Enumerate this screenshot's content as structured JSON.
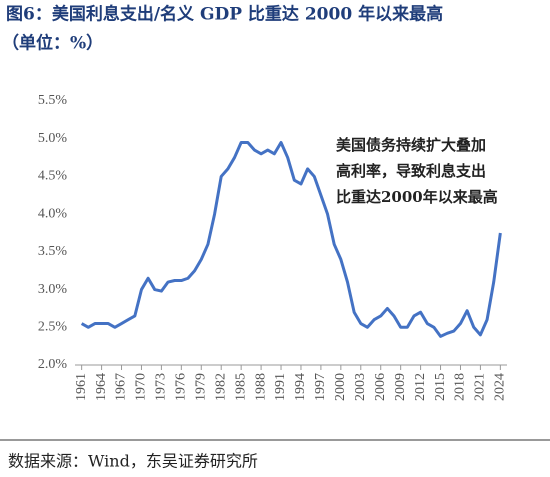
{
  "chart_data": {
    "type": "line",
    "title": "图6：美国利息支出/名义 GDP 比重达 2000 年以来最高",
    "subtitle": "（单位：%）",
    "annotation": [
      "美国债务持续扩大叠加",
      "高利率，导致利息支出",
      "比重达2000年以来最高"
    ],
    "source": "数据来源：Wind，东吴证券研究所",
    "color": "#4472c4",
    "x": [
      1961,
      1962,
      1963,
      1964,
      1965,
      1966,
      1967,
      1968,
      1969,
      1970,
      1971,
      1972,
      1973,
      1974,
      1975,
      1976,
      1977,
      1978,
      1979,
      1980,
      1981,
      1982,
      1983,
      1984,
      1985,
      1986,
      1987,
      1988,
      1989,
      1990,
      1991,
      1992,
      1993,
      1994,
      1995,
      1996,
      1997,
      1998,
      1999,
      2000,
      2001,
      2002,
      2003,
      2004,
      2005,
      2006,
      2007,
      2008,
      2009,
      2010,
      2011,
      2012,
      2013,
      2014,
      2015,
      2016,
      2017,
      2018,
      2019,
      2020,
      2021,
      2022,
      2023,
      2024
    ],
    "values": [
      2.55,
      2.5,
      2.55,
      2.55,
      2.55,
      2.5,
      2.55,
      2.6,
      2.65,
      3.0,
      3.15,
      3.0,
      2.98,
      3.1,
      3.12,
      3.12,
      3.15,
      3.25,
      3.4,
      3.6,
      4.0,
      4.5,
      4.6,
      4.75,
      4.95,
      4.95,
      4.85,
      4.8,
      4.85,
      4.8,
      4.95,
      4.75,
      4.45,
      4.4,
      4.6,
      4.5,
      4.25,
      4.0,
      3.6,
      3.4,
      3.1,
      2.7,
      2.55,
      2.5,
      2.6,
      2.65,
      2.75,
      2.65,
      2.5,
      2.5,
      2.65,
      2.7,
      2.55,
      2.5,
      2.38,
      2.42,
      2.45,
      2.55,
      2.72,
      2.5,
      2.4,
      2.6,
      3.1,
      3.75
    ],
    "xlim": [
      1960,
      2025
    ],
    "xticks": [
      1961,
      1964,
      1967,
      1970,
      1973,
      1976,
      1979,
      1982,
      1985,
      1988,
      1991,
      1994,
      1997,
      2000,
      2003,
      2006,
      2009,
      2012,
      2015,
      2018,
      2021,
      2024
    ],
    "ylim": [
      2.0,
      5.5
    ],
    "yticks": [
      {
        "value": 2.0,
        "label": "2.0%"
      },
      {
        "value": 2.5,
        "label": "2.5%"
      },
      {
        "value": 3.0,
        "label": "3.0%"
      },
      {
        "value": 3.5,
        "label": "3.5%"
      },
      {
        "value": 4.0,
        "label": "4.0%"
      },
      {
        "value": 4.5,
        "label": "4.5%"
      },
      {
        "value": 5.0,
        "label": "5.0%"
      },
      {
        "value": 5.5,
        "label": "5.5%"
      }
    ]
  }
}
